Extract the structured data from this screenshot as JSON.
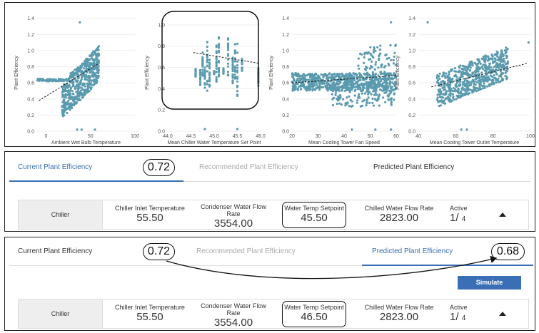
{
  "charts": [
    {
      "xlabel": "Ambient Wet Bulb Temperature",
      "ylabel": "Plant Efficiency",
      "x_ticks": [
        "0",
        "50",
        "100"
      ],
      "y_ticks": [
        "0.0",
        "0.2",
        "0.4",
        "0.6",
        "0.8",
        "1.0",
        "1.2",
        "1.4"
      ],
      "xlim": [
        -10,
        100
      ],
      "ylim": [
        0,
        1.45
      ],
      "trend": [
        [
          -8,
          0.38
        ],
        [
          58,
          0.83
        ]
      ]
    },
    {
      "xlabel": "Mean Chiller Water Temperature Set Point",
      "ylabel": "Plant Efficiency",
      "x_ticks": [
        "44.0",
        "44.5",
        "45.0",
        "45.5",
        "46.0"
      ],
      "y_ticks": [
        "0.0",
        "0.2",
        "0.4",
        "0.6",
        "0.8",
        "1.0"
      ],
      "xlim": [
        44.0,
        46.0
      ],
      "ylim": [
        0,
        1.1
      ],
      "trend": [
        [
          44.55,
          0.74
        ],
        [
          45.95,
          0.64
        ]
      ]
    },
    {
      "xlabel": "Mean Cooling Tower Fan Speed",
      "ylabel": "Plant Efficiency",
      "x_ticks": [
        "20",
        "30",
        "40",
        "50",
        "60"
      ],
      "y_ticks": [
        "0.0",
        "0.2",
        "0.4",
        "0.6",
        "0.8",
        "1.0",
        "1.2",
        "1.4"
      ],
      "xlim": [
        20,
        60
      ],
      "ylim": [
        0,
        1.45
      ],
      "trend": [
        [
          20,
          0.6
        ],
        [
          60,
          0.69
        ]
      ]
    },
    {
      "xlabel": "Mean Cooling Tower Outlet Temperature",
      "ylabel": "Plant Efficiency",
      "x_ticks": [
        "40",
        "60",
        "80",
        "100"
      ],
      "y_ticks": [
        "0.0",
        "0.2",
        "0.4",
        "0.6",
        "0.8",
        "1.0",
        "1.2",
        "1.4"
      ],
      "xlim": [
        40,
        100
      ],
      "ylim": [
        0,
        1.45
      ],
      "trend": [
        [
          47,
          0.55
        ],
        [
          98,
          0.84
        ]
      ]
    }
  ],
  "point_color": "#5a9aae",
  "accent_color": "#3a6fb5",
  "panel_a": {
    "tabs": [
      {
        "label": "Current Plant Efficiency",
        "state": "active"
      },
      {
        "label": "Recommended Plant Efficiency",
        "state": "inactive"
      },
      {
        "label": "Predicted Plant Efficiency",
        "state": "normal"
      }
    ],
    "current_value": "0.72",
    "card": {
      "title": "Chiller",
      "metrics": [
        {
          "label": "Chiller Inlet Temperature",
          "value": "55.50"
        },
        {
          "label": "Condenser Water Flow Rate",
          "value": "3554.00"
        },
        {
          "label": "Water Temp Setpoint",
          "value": "45.50"
        },
        {
          "label": "Chilled Water Flow Rate",
          "value": "2823.00"
        }
      ],
      "active_label": "Active",
      "active_count": "1/",
      "active_total": "4"
    }
  },
  "panel_b": {
    "tabs": [
      {
        "label": "Current Plant Efficiency",
        "state": "normal"
      },
      {
        "label": "Recommended Plant Efficiency",
        "state": "inactive"
      },
      {
        "label": "Predicted Plant Efficiency",
        "state": "active"
      }
    ],
    "current_value": "0.72",
    "predicted_value": "0.68",
    "simulate_label": "Simulate",
    "card": {
      "title": "Chiller",
      "metrics": [
        {
          "label": "Chiller Inlet Temperature",
          "value": "55.50"
        },
        {
          "label": "Condenser Water Flow Rate",
          "value": "3554.00"
        },
        {
          "label": "Water Temp Setpoint",
          "value": "46.50"
        },
        {
          "label": "Chilled Water Flow Rate",
          "value": "2823.00"
        }
      ],
      "active_label": "Active",
      "active_count": "1/",
      "active_total": "4"
    }
  }
}
